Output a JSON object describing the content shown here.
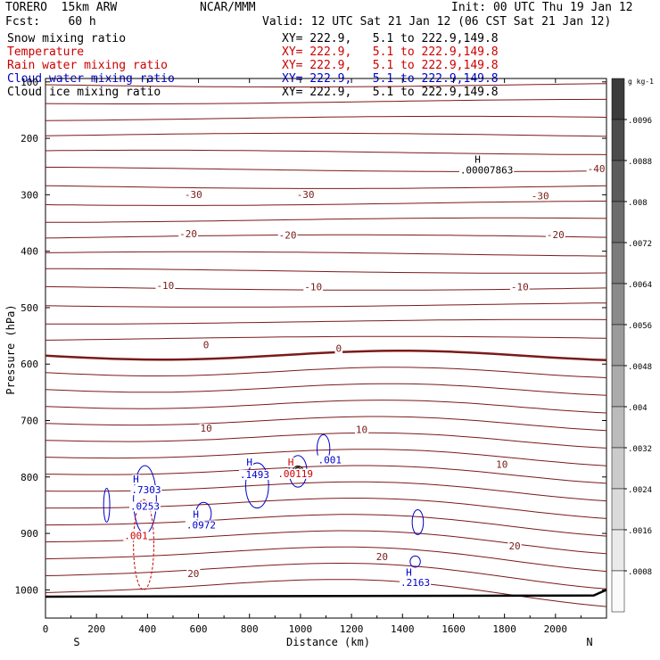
{
  "header": {
    "model": "TORERO  15km ARW",
    "center": "NCAR/MMM",
    "init": "Init: 00 UTC Thu 19 Jan 12",
    "fcst": "Fcst:    60 h",
    "valid": "Valid: 12 UTC Sat 21 Jan 12 (06 CST Sat 21 Jan 12)"
  },
  "fields": [
    {
      "name": "Snow mixing ratio",
      "xy": "XY= 222.9,   5.1 to 222.9,149.8",
      "color": "#000000"
    },
    {
      "name": "Temperature",
      "xy": "XY= 222.9,   5.1 to 222.9,149.8",
      "color": "#cc0000"
    },
    {
      "name": "Rain water mixing ratio",
      "xy": "XY= 222.9,   5.1 to 222.9,149.8",
      "color": "#cc0000"
    },
    {
      "name": "Cloud water mixing ratio",
      "xy": "XY= 222.9,   5.1 to 222.9,149.8",
      "color": "#0000cc"
    },
    {
      "name": "Cloud ice mixing ratio",
      "xy": "XY= 222.9,   5.1 to 222.9,149.8",
      "color": "#000000"
    }
  ],
  "chart_data": {
    "type": "cross-section contour",
    "xlabel": "Distance (km)",
    "ylabel": "Pressure (hPa)",
    "xlim": [
      0,
      2200
    ],
    "ylim": [
      1050,
      100
    ],
    "x_ticks": [
      0,
      200,
      400,
      600,
      800,
      1000,
      1200,
      1400,
      1600,
      1800,
      2000
    ],
    "y_ticks": [
      100,
      200,
      300,
      400,
      500,
      600,
      700,
      800,
      900,
      1000
    ],
    "y_tick_label_top": "100",
    "left_end": "S",
    "right_end": "N",
    "temperature_labels": [
      {
        "text": "-40",
        "x": 2160,
        "p": 260
      },
      {
        "text": "-30",
        "x": 580,
        "p": 306
      },
      {
        "text": "-30",
        "x": 1020,
        "p": 306
      },
      {
        "text": "-30",
        "x": 1940,
        "p": 308
      },
      {
        "text": "-20",
        "x": 560,
        "p": 375
      },
      {
        "text": "-20",
        "x": 950,
        "p": 378
      },
      {
        "text": "-20",
        "x": 2000,
        "p": 377
      },
      {
        "text": "-10",
        "x": 470,
        "p": 467
      },
      {
        "text": "-10",
        "x": 1050,
        "p": 469
      },
      {
        "text": "-10",
        "x": 1860,
        "p": 469
      },
      {
        "text": "0",
        "x": 630,
        "p": 572
      },
      {
        "text": "0",
        "x": 1150,
        "p": 578
      },
      {
        "text": "10",
        "x": 630,
        "p": 720
      },
      {
        "text": "10",
        "x": 1240,
        "p": 722
      },
      {
        "text": "10",
        "x": 1790,
        "p": 784
      },
      {
        "text": "20",
        "x": 580,
        "p": 977
      },
      {
        "text": "20",
        "x": 1320,
        "p": 947
      },
      {
        "text": "20",
        "x": 1840,
        "p": 928
      }
    ],
    "cloud_water_labels": [
      {
        "text": "H",
        "x": 355,
        "p": 810
      },
      {
        "text": ".7303",
        "x": 395,
        "p": 829
      },
      {
        "text": ".0253",
        "x": 390,
        "p": 858
      },
      {
        "text": "H",
        "x": 590,
        "p": 872
      },
      {
        "text": ".0972",
        "x": 610,
        "p": 891
      },
      {
        "text": "H",
        "x": 800,
        "p": 780
      },
      {
        "text": ".1493",
        "x": 820,
        "p": 802
      },
      {
        "text": ".001",
        "x": 1115,
        "p": 776
      },
      {
        "text": "H",
        "x": 1425,
        "p": 975
      },
      {
        "text": ".2163",
        "x": 1450,
        "p": 993
      }
    ],
    "rain_labels": [
      {
        "text": "H",
        "x": 962,
        "p": 780
      },
      {
        "text": ".00119",
        "x": 980,
        "p": 800
      },
      {
        "text": ".001",
        "x": 355,
        "p": 910
      }
    ],
    "snow_labels": [
      {
        "text": "H",
        "x": 1695,
        "p": 243
      },
      {
        "text": ".00007863",
        "x": 1730,
        "p": 262
      }
    ],
    "colorbar": {
      "unit": "g kg-1",
      "labels": [
        ".0096",
        ".0088",
        ".008",
        ".0072",
        ".0064",
        ".0056",
        ".0048",
        ".004",
        ".0032",
        ".0024",
        ".0016",
        ".0008"
      ]
    }
  }
}
